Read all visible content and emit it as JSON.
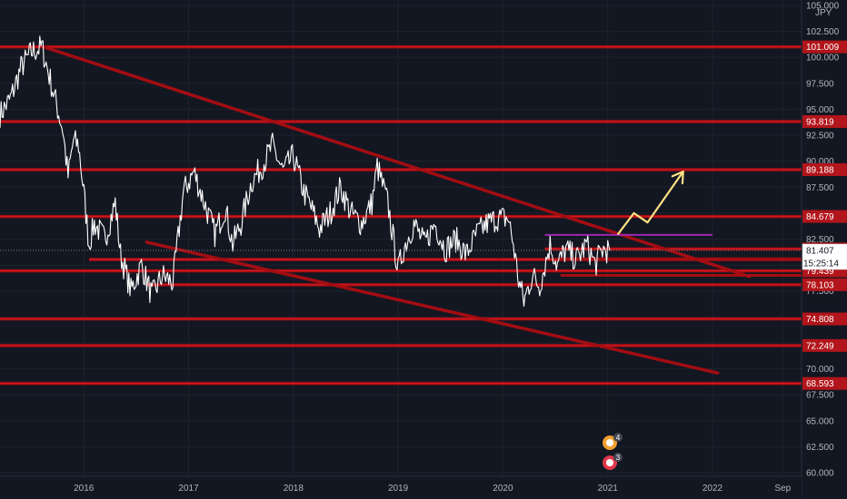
{
  "chart_data": {
    "type": "line",
    "currency": "JPY",
    "y_ticks": [
      "105.000",
      "102.500",
      "100.000",
      "97.500",
      "95.000",
      "92.500",
      "90.000",
      "87.500",
      "85.000",
      "82.500",
      "80.000",
      "77.500",
      "75.000",
      "72.500",
      "70.000",
      "67.500",
      "65.000",
      "62.500",
      "60.000"
    ],
    "ylim": [
      60,
      105
    ],
    "x_ticks": [
      "2016",
      "2017",
      "2018",
      "2019",
      "2020",
      "2021",
      "2022",
      "Sep"
    ],
    "xlim": [
      2015.2,
      2022.85
    ],
    "level_lines": [
      {
        "label": "101.009",
        "value": 101.009
      },
      {
        "label": "93.819",
        "value": 93.819
      },
      {
        "label": "89.188",
        "value": 89.188
      },
      {
        "label": "84.679",
        "value": 84.679
      },
      {
        "label": "81.550",
        "value": 81.55
      },
      {
        "label": "80.532",
        "value": 80.532
      },
      {
        "label": "79.439",
        "value": 79.439
      },
      {
        "label": "78.103",
        "value": 78.103
      },
      {
        "label": "74.808",
        "value": 74.808
      },
      {
        "label": "72.249",
        "value": 72.249
      },
      {
        "label": "68.593",
        "value": 68.593
      }
    ],
    "short_levels": [
      {
        "value": 80.6,
        "x0": 2020.55,
        "x1": 2021.05
      },
      {
        "value": 79.0,
        "x0": 2020.55,
        "x1": 2021.05
      }
    ],
    "current_price": {
      "label": "81.407",
      "value": 81.407
    },
    "countdown": "15:25:14",
    "trendlines": [
      {
        "x0": 2015.62,
        "y0": 101.0,
        "x1": 2022.35,
        "y1": 78.9
      },
      {
        "x0": 2016.6,
        "y0": 82.2,
        "x1": 2022.05,
        "y1": 69.6
      }
    ],
    "purple_level": {
      "value": 82.9,
      "x0": 2020.4,
      "x1": 2022.0
    },
    "projection": [
      [
        2021.1,
        83.0
      ],
      [
        2021.25,
        85.0
      ],
      [
        2021.38,
        84.1
      ],
      [
        2021.72,
        89.0
      ]
    ],
    "price_series": [
      [
        2015.2,
        94.5
      ],
      [
        2015.3,
        96.0
      ],
      [
        2015.4,
        99.0
      ],
      [
        2015.5,
        100.5
      ],
      [
        2015.6,
        101.0
      ],
      [
        2015.7,
        97.0
      ],
      [
        2015.8,
        93.0
      ],
      [
        2015.85,
        88.5
      ],
      [
        2015.9,
        92.0
      ],
      [
        2015.95,
        91.5
      ],
      [
        2016.0,
        87.0
      ],
      [
        2016.05,
        82.0
      ],
      [
        2016.1,
        84.0
      ],
      [
        2016.2,
        82.5
      ],
      [
        2016.3,
        86.0
      ],
      [
        2016.35,
        81.0
      ],
      [
        2016.45,
        77.5
      ],
      [
        2016.55,
        80.0
      ],
      [
        2016.65,
        77.0
      ],
      [
        2016.75,
        79.0
      ],
      [
        2016.85,
        78.3
      ],
      [
        2016.95,
        87.0
      ],
      [
        2017.05,
        89.0
      ],
      [
        2017.15,
        86.0
      ],
      [
        2017.25,
        83.0
      ],
      [
        2017.35,
        85.5
      ],
      [
        2017.42,
        82.0
      ],
      [
        2017.5,
        84.0
      ],
      [
        2017.6,
        88.0
      ],
      [
        2017.7,
        89.5
      ],
      [
        2017.8,
        91.5
      ],
      [
        2017.9,
        89.0
      ],
      [
        2018.0,
        90.5
      ],
      [
        2018.1,
        87.0
      ],
      [
        2018.15,
        86.0
      ],
      [
        2018.25,
        83.5
      ],
      [
        2018.35,
        85.0
      ],
      [
        2018.45,
        87.5
      ],
      [
        2018.55,
        85.0
      ],
      [
        2018.65,
        84.0
      ],
      [
        2018.75,
        86.0
      ],
      [
        2018.8,
        89.5
      ],
      [
        2018.9,
        86.0
      ],
      [
        2019.0,
        79.5
      ],
      [
        2019.05,
        81.5
      ],
      [
        2019.15,
        84.0
      ],
      [
        2019.25,
        82.0
      ],
      [
        2019.35,
        84.0
      ],
      [
        2019.45,
        81.5
      ],
      [
        2019.55,
        82.5
      ],
      [
        2019.65,
        81.0
      ],
      [
        2019.75,
        83.0
      ],
      [
        2019.85,
        84.0
      ],
      [
        2019.95,
        84.5
      ],
      [
        2020.05,
        84.5
      ],
      [
        2020.1,
        82.0
      ],
      [
        2020.15,
        78.5
      ],
      [
        2020.2,
        76.5
      ],
      [
        2020.28,
        79.0
      ],
      [
        2020.35,
        78.0
      ],
      [
        2020.45,
        82.0
      ],
      [
        2020.52,
        80.0
      ],
      [
        2020.6,
        81.5
      ],
      [
        2020.7,
        80.5
      ],
      [
        2020.8,
        82.0
      ],
      [
        2020.88,
        80.0
      ],
      [
        2020.95,
        81.5
      ],
      [
        2021.02,
        81.4
      ]
    ],
    "badges": [
      {
        "count": "4",
        "x": 2021.02,
        "color": "#f0a030"
      },
      {
        "count": "3",
        "x": 2021.02,
        "color": "#e0384a"
      }
    ]
  }
}
